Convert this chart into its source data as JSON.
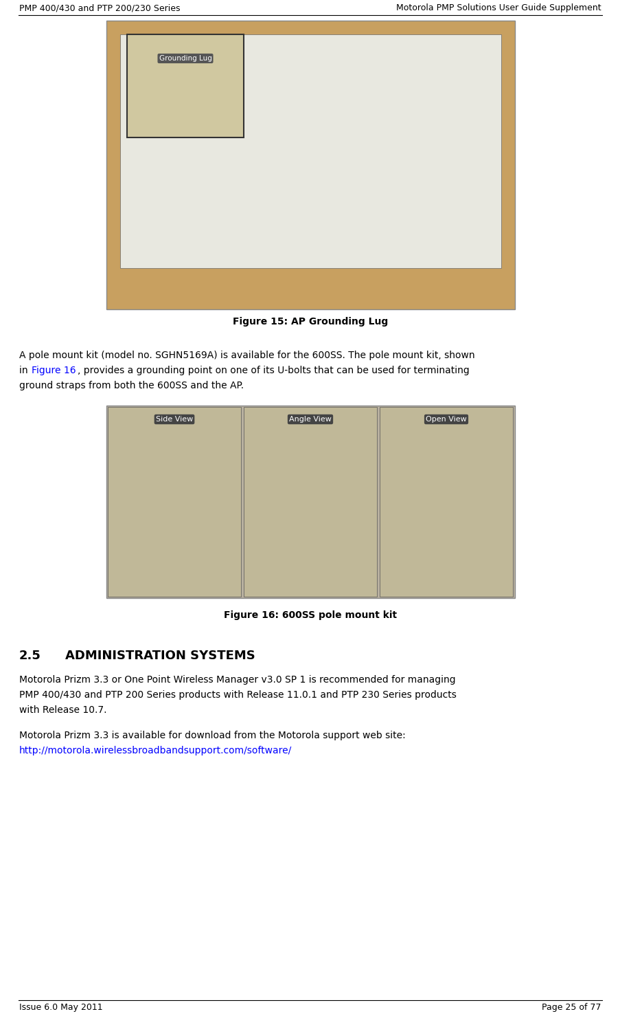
{
  "header_left": "PMP 400/430 and PTP 200/230 Series",
  "header_right": "Motorola PMP Solutions User Guide Supplement",
  "figure1_caption": "Figure 15: AP Grounding Lug",
  "para1_before_link": "A pole mount kit (model no. SGHN5169A) is available for the 600SS. The pole mount kit, shown\nin ",
  "para1_link": "Figure 16",
  "para1_after_link": ", provides a grounding point on one of its U-bolts that can be used for terminating\nground straps from both the 600SS and the AP.",
  "figure2_caption": "Figure 16: 600SS pole mount kit",
  "section_number": "2.5",
  "section_title": "ADMINISTRATION SYSTEMS",
  "para2_line1": "Motorola Prizm 3.3 or One Point Wireless Manager v3.0 SP 1 is recommended for managing",
  "para2_line2": "PMP 400/430 and PTP 200 Series products with Release 11.0.1 and PTP 230 Series products",
  "para2_line3": "with Release 10.7.",
  "para3_text": "Motorola Prizm 3.3 is available for download from the Motorola support web site:",
  "para3_link": "http://motorola.wirelessbroadbandsupport.com/software/",
  "footer_left": "Issue 6.0 May 2011",
  "footer_right": "Page 25 of 77",
  "bg_color": "#ffffff",
  "text_color": "#000000",
  "link_color": "#0000ff",
  "header_line_color": "#000000",
  "footer_line_color": "#000000"
}
